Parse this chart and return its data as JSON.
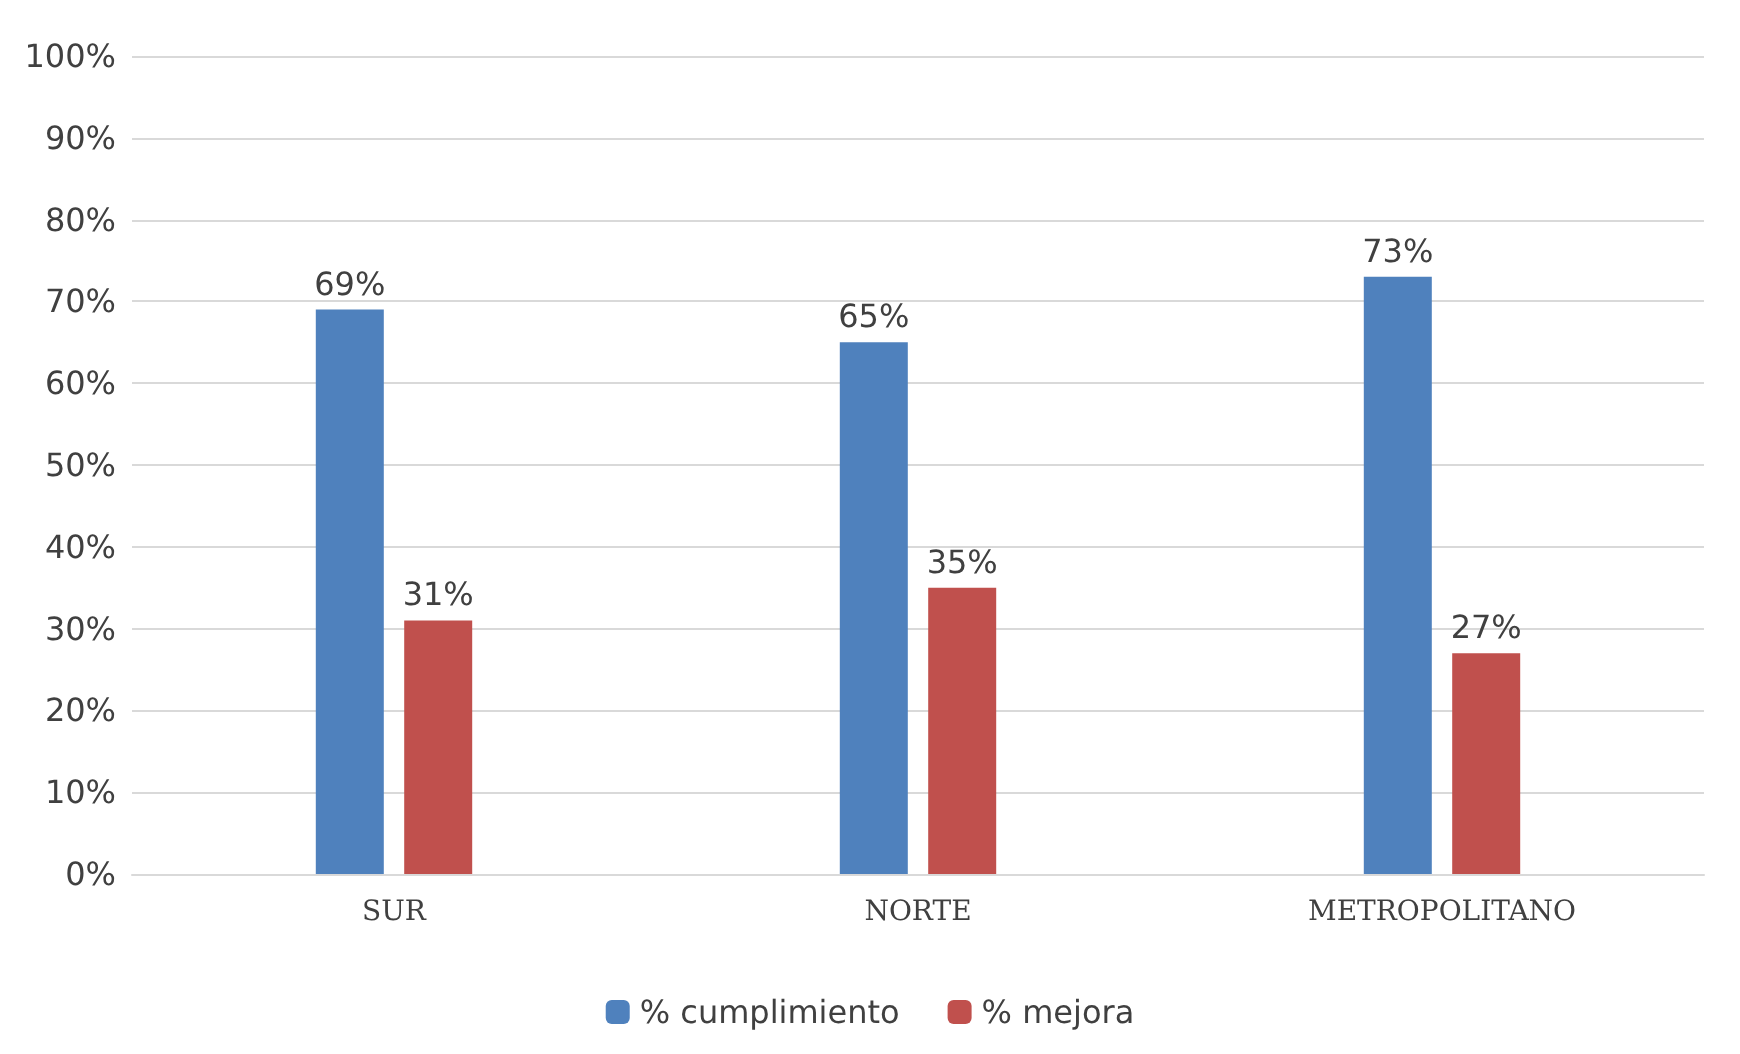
{
  "chart_data": {
    "type": "bar",
    "categories": [
      "SUR",
      "NORTE",
      "METROPOLITANO"
    ],
    "series": [
      {
        "name": "% cumplimiento",
        "color": "#4f81bd",
        "values": [
          69,
          65,
          73
        ],
        "value_labels": [
          "69%",
          "65%",
          "73%"
        ]
      },
      {
        "name": "% mejora",
        "color": "#c0504d",
        "values": [
          31,
          35,
          27
        ],
        "value_labels": [
          "31%",
          "35%",
          "27%"
        ]
      }
    ],
    "ylim": [
      0,
      100
    ],
    "yticks": [
      {
        "value": 0,
        "label": "0%"
      },
      {
        "value": 10,
        "label": "10%"
      },
      {
        "value": 20,
        "label": "20%"
      },
      {
        "value": 30,
        "label": "30%"
      },
      {
        "value": 40,
        "label": "40%"
      },
      {
        "value": 50,
        "label": "50%"
      },
      {
        "value": 60,
        "label": "60%"
      },
      {
        "value": 70,
        "label": "70%"
      },
      {
        "value": 80,
        "label": "80%"
      },
      {
        "value": 90,
        "label": "90%"
      },
      {
        "value": 100,
        "label": "100%"
      }
    ],
    "grid": "y",
    "legend": "bottom"
  }
}
